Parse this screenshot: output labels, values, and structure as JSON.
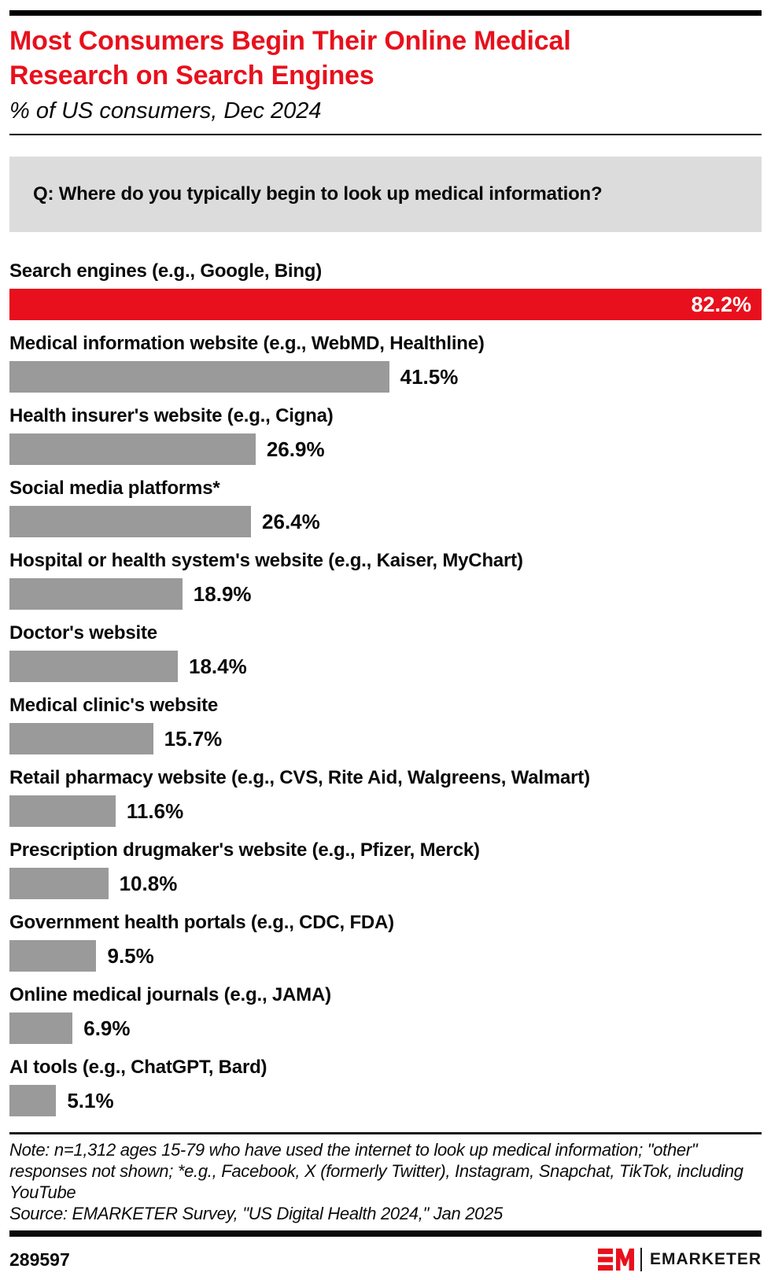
{
  "header": {
    "title": "Most Consumers Begin Their Online Medical Research on Search Engines",
    "subtitle": "% of US consumers, Dec 2024"
  },
  "question": {
    "label": "Q: Where do you typically begin to look up medical information?"
  },
  "chart_data": {
    "type": "bar",
    "orientation": "horizontal",
    "unit": "%",
    "title": "Most Consumers Begin Their Online Medical Research on Search Engines",
    "subtitle": "% of US consumers, Dec 2024",
    "categories": [
      "Search engines (e.g., Google, Bing)",
      "Medical information website (e.g., WebMD, Healthline)",
      "Health insurer's website (e.g., Cigna)",
      "Social media platforms*",
      "Hospital or health system's website (e.g., Kaiser, MyChart)",
      "Doctor's website",
      "Medical clinic's website",
      "Retail pharmacy website (e.g., CVS, Rite Aid, Walgreens, Walmart)",
      "Prescription drugmaker's website (e.g., Pfizer, Merck)",
      "Government health portals (e.g., CDC, FDA)",
      "Online medical journals (e.g., JAMA)",
      "AI tools (e.g., ChatGPT, Bard)"
    ],
    "values": [
      82.2,
      41.5,
      26.9,
      26.4,
      18.9,
      18.4,
      15.7,
      11.6,
      10.8,
      9.5,
      6.9,
      5.1
    ],
    "value_labels": [
      "82.2%",
      "41.5%",
      "26.9%",
      "26.4%",
      "18.9%",
      "18.4%",
      "15.7%",
      "11.6%",
      "10.8%",
      "9.5%",
      "6.9%",
      "5.1%"
    ],
    "highlight_index": 0,
    "xlim": [
      0,
      82.2
    ],
    "grid": false,
    "legend": false,
    "colors": {
      "highlight": "#e8101c",
      "default": "#9a9a9a"
    }
  },
  "footnote": {
    "note": "Note: n=1,312 ages 15-79 who have used the internet to look up medical information; \"other\" responses not shown; *e.g., Facebook, X (formerly Twitter), Instagram, Snapchat, TikTok, including YouTube",
    "source": "Source: EMARKETER Survey, \"US Digital Health 2024,\" Jan 2025"
  },
  "footer": {
    "chart_id": "289597",
    "logo_mark": "EM",
    "brand": "EMARKETER"
  }
}
